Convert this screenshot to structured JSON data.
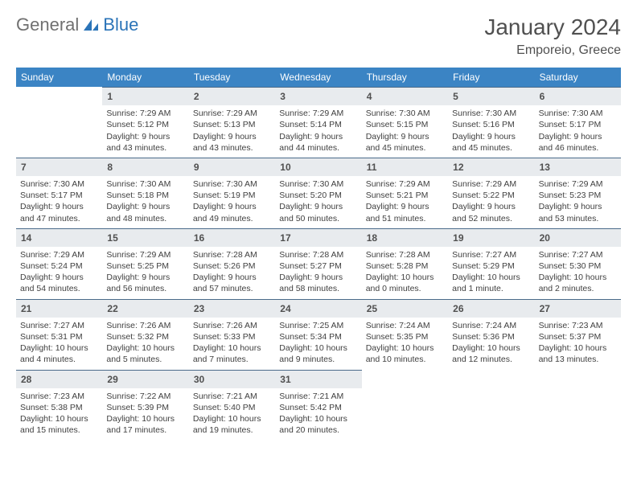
{
  "logo": {
    "general": "General",
    "blue": "Blue"
  },
  "title": "January 2024",
  "location": "Emporeio, Greece",
  "colors": {
    "header_bg": "#3b84b8",
    "daynum_bg": "#e8ebee",
    "border": "#4a6b8a"
  },
  "weekdays": [
    "Sunday",
    "Monday",
    "Tuesday",
    "Wednesday",
    "Thursday",
    "Friday",
    "Saturday"
  ],
  "start_offset": 1,
  "days": [
    {
      "n": 1,
      "sunrise": "7:29 AM",
      "sunset": "5:12 PM",
      "daylight": "9 hours and 43 minutes."
    },
    {
      "n": 2,
      "sunrise": "7:29 AM",
      "sunset": "5:13 PM",
      "daylight": "9 hours and 43 minutes."
    },
    {
      "n": 3,
      "sunrise": "7:29 AM",
      "sunset": "5:14 PM",
      "daylight": "9 hours and 44 minutes."
    },
    {
      "n": 4,
      "sunrise": "7:30 AM",
      "sunset": "5:15 PM",
      "daylight": "9 hours and 45 minutes."
    },
    {
      "n": 5,
      "sunrise": "7:30 AM",
      "sunset": "5:16 PM",
      "daylight": "9 hours and 45 minutes."
    },
    {
      "n": 6,
      "sunrise": "7:30 AM",
      "sunset": "5:17 PM",
      "daylight": "9 hours and 46 minutes."
    },
    {
      "n": 7,
      "sunrise": "7:30 AM",
      "sunset": "5:17 PM",
      "daylight": "9 hours and 47 minutes."
    },
    {
      "n": 8,
      "sunrise": "7:30 AM",
      "sunset": "5:18 PM",
      "daylight": "9 hours and 48 minutes."
    },
    {
      "n": 9,
      "sunrise": "7:30 AM",
      "sunset": "5:19 PM",
      "daylight": "9 hours and 49 minutes."
    },
    {
      "n": 10,
      "sunrise": "7:30 AM",
      "sunset": "5:20 PM",
      "daylight": "9 hours and 50 minutes."
    },
    {
      "n": 11,
      "sunrise": "7:29 AM",
      "sunset": "5:21 PM",
      "daylight": "9 hours and 51 minutes."
    },
    {
      "n": 12,
      "sunrise": "7:29 AM",
      "sunset": "5:22 PM",
      "daylight": "9 hours and 52 minutes."
    },
    {
      "n": 13,
      "sunrise": "7:29 AM",
      "sunset": "5:23 PM",
      "daylight": "9 hours and 53 minutes."
    },
    {
      "n": 14,
      "sunrise": "7:29 AM",
      "sunset": "5:24 PM",
      "daylight": "9 hours and 54 minutes."
    },
    {
      "n": 15,
      "sunrise": "7:29 AM",
      "sunset": "5:25 PM",
      "daylight": "9 hours and 56 minutes."
    },
    {
      "n": 16,
      "sunrise": "7:28 AM",
      "sunset": "5:26 PM",
      "daylight": "9 hours and 57 minutes."
    },
    {
      "n": 17,
      "sunrise": "7:28 AM",
      "sunset": "5:27 PM",
      "daylight": "9 hours and 58 minutes."
    },
    {
      "n": 18,
      "sunrise": "7:28 AM",
      "sunset": "5:28 PM",
      "daylight": "10 hours and 0 minutes."
    },
    {
      "n": 19,
      "sunrise": "7:27 AM",
      "sunset": "5:29 PM",
      "daylight": "10 hours and 1 minute."
    },
    {
      "n": 20,
      "sunrise": "7:27 AM",
      "sunset": "5:30 PM",
      "daylight": "10 hours and 2 minutes."
    },
    {
      "n": 21,
      "sunrise": "7:27 AM",
      "sunset": "5:31 PM",
      "daylight": "10 hours and 4 minutes."
    },
    {
      "n": 22,
      "sunrise": "7:26 AM",
      "sunset": "5:32 PM",
      "daylight": "10 hours and 5 minutes."
    },
    {
      "n": 23,
      "sunrise": "7:26 AM",
      "sunset": "5:33 PM",
      "daylight": "10 hours and 7 minutes."
    },
    {
      "n": 24,
      "sunrise": "7:25 AM",
      "sunset": "5:34 PM",
      "daylight": "10 hours and 9 minutes."
    },
    {
      "n": 25,
      "sunrise": "7:24 AM",
      "sunset": "5:35 PM",
      "daylight": "10 hours and 10 minutes."
    },
    {
      "n": 26,
      "sunrise": "7:24 AM",
      "sunset": "5:36 PM",
      "daylight": "10 hours and 12 minutes."
    },
    {
      "n": 27,
      "sunrise": "7:23 AM",
      "sunset": "5:37 PM",
      "daylight": "10 hours and 13 minutes."
    },
    {
      "n": 28,
      "sunrise": "7:23 AM",
      "sunset": "5:38 PM",
      "daylight": "10 hours and 15 minutes."
    },
    {
      "n": 29,
      "sunrise": "7:22 AM",
      "sunset": "5:39 PM",
      "daylight": "10 hours and 17 minutes."
    },
    {
      "n": 30,
      "sunrise": "7:21 AM",
      "sunset": "5:40 PM",
      "daylight": "10 hours and 19 minutes."
    },
    {
      "n": 31,
      "sunrise": "7:21 AM",
      "sunset": "5:42 PM",
      "daylight": "10 hours and 20 minutes."
    }
  ]
}
